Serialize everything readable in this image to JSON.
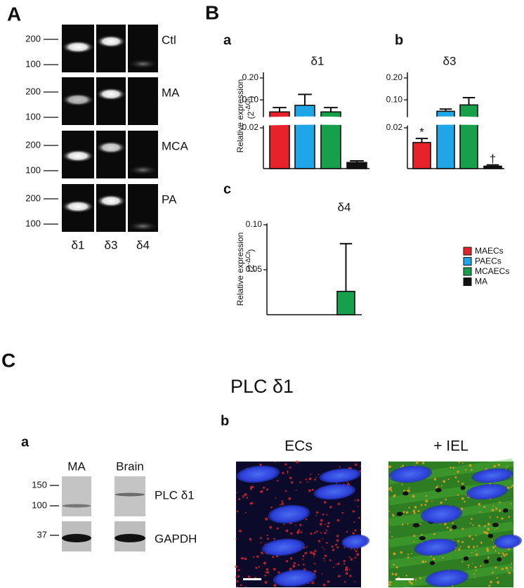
{
  "panels": {
    "A": "A",
    "B": "B",
    "C": "C"
  },
  "gel": {
    "rows": [
      "Ctl",
      "MA",
      "MCA",
      "PA"
    ],
    "lanes": [
      "δ1",
      "δ3",
      "δ4"
    ],
    "markers": [
      200,
      100
    ]
  },
  "chart_data": [
    {
      "type": "bar",
      "panel": "a",
      "title": "δ1",
      "y_label": "Relative expression",
      "y_unit_base": "(2",
      "y_unit_sup": "-ΔCt",
      "y_unit_end": ")",
      "ylim": [
        0,
        0.2
      ],
      "ybreak": [
        0.02,
        0.03
      ],
      "yticks": [
        0.02,
        {
          "value": 0.1,
          "label": "0.10"
        },
        {
          "value": 0.2,
          "label": "0.20"
        }
      ],
      "series": [
        {
          "name": "MAECs",
          "color": "#e8222a",
          "values": [
            0.045
          ],
          "errors": [
            0.02
          ]
        },
        {
          "name": "PAECs",
          "color": "#1ea6e8",
          "values": [
            0.075
          ],
          "errors": [
            0.05
          ]
        },
        {
          "name": "MCAECs",
          "color": "#17a04c",
          "values": [
            0.045
          ],
          "errors": [
            0.02
          ]
        },
        {
          "name": "MA",
          "color": "#111111",
          "values": [
            0.003
          ],
          "errors": [
            0.0008
          ]
        }
      ]
    },
    {
      "type": "bar",
      "panel": "b",
      "title": "δ3",
      "ylim": [
        0,
        0.2
      ],
      "ybreak": [
        0.02,
        0.03
      ],
      "yticks": [
        0.02,
        {
          "value": 0.1,
          "label": "0.10"
        },
        {
          "value": 0.2,
          "label": "0.20"
        }
      ],
      "series": [
        {
          "name": "MAECs",
          "color": "#e8222a",
          "values": [
            0.0128
          ],
          "errors": [
            0.002
          ],
          "annotation": "*"
        },
        {
          "name": "PAECs",
          "color": "#1ea6e8",
          "values": [
            0.048
          ],
          "errors": [
            0.01
          ]
        },
        {
          "name": "MCAECs",
          "color": "#17a04c",
          "values": [
            0.077
          ],
          "errors": [
            0.033
          ]
        },
        {
          "name": "MA",
          "color": "#111111",
          "values": [
            0.0012
          ],
          "errors": [
            0.0006
          ],
          "annotation": "†"
        }
      ]
    },
    {
      "type": "bar",
      "panel": "c",
      "title": "δ4",
      "y_label": "Relative expression",
      "y_unit_base": "(2",
      "y_unit_sup": "-ΔCt",
      "y_unit_end": ")",
      "ylim": [
        0,
        0.1
      ],
      "yticks": [
        0.05,
        {
          "value": 0.1,
          "label": "0.10"
        }
      ],
      "series": [
        {
          "name": "MAECs",
          "color": "#e8222a",
          "values": [
            null
          ],
          "errors": [
            null
          ]
        },
        {
          "name": "PAECs",
          "color": "#1ea6e8",
          "values": [
            null
          ],
          "errors": [
            null
          ]
        },
        {
          "name": "MCAECs",
          "color": "#17a04c",
          "values": [
            0.026
          ],
          "errors": [
            0.053
          ]
        },
        {
          "name": "MA",
          "color": "#111111",
          "values": [
            null
          ],
          "errors": [
            null
          ]
        }
      ]
    }
  ],
  "section_c": {
    "title": "PLC δ1",
    "western": {
      "panel": "a",
      "lanes": [
        "MA",
        "Brain"
      ],
      "markers": [
        150,
        100,
        37
      ],
      "bands": [
        "PLC δ1",
        "GAPDH"
      ]
    },
    "imaging": {
      "panel": "b",
      "images": [
        "ECs",
        "+ IEL"
      ]
    }
  }
}
